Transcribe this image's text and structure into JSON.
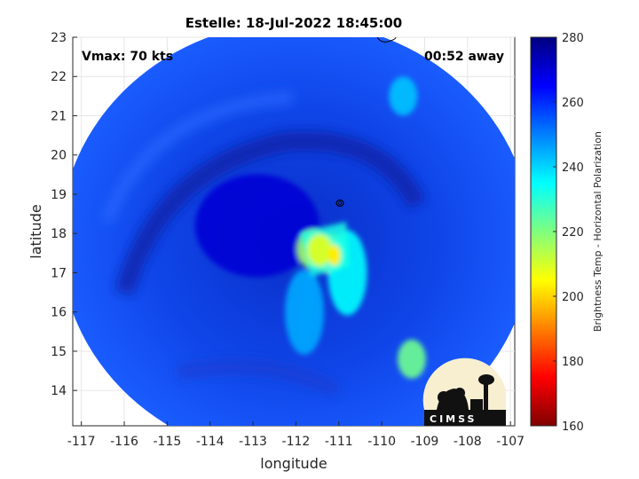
{
  "chart_data": {
    "type": "heatmap",
    "title": "Estelle: 18-Jul-2022 18:45:00",
    "xlabel": "longitude",
    "ylabel": "latitude",
    "xlim": [
      -117.2,
      -106.9
    ],
    "ylim": [
      13.1,
      23.0
    ],
    "xticks": [
      -117,
      -116,
      -115,
      -114,
      -113,
      -112,
      -111,
      -110,
      -109,
      -108,
      -107
    ],
    "yticks": [
      14,
      15,
      16,
      17,
      18,
      19,
      20,
      21,
      22,
      23
    ],
    "grid": true,
    "annotations": {
      "vmax": "Vmax: 70 kts",
      "away": "00:52 away"
    },
    "colorbar": {
      "label": "Brightness Temp - Horizontal Polarization",
      "range": [
        160,
        280
      ],
      "ticks": [
        160,
        180,
        200,
        220,
        240,
        260,
        280
      ],
      "colormap": "jet"
    },
    "swath": {
      "center_lon": -112.0,
      "center_lat": 17.9,
      "radius_deg": 5.5
    },
    "regions": [
      {
        "label": "eye",
        "lon": -112.9,
        "lat": 18.2,
        "value": 270
      },
      {
        "label": "convection",
        "lon": -111.2,
        "lat": 17.5,
        "value": 205
      },
      {
        "label": "convection",
        "lon": -111.6,
        "lat": 17.6,
        "value": 215
      },
      {
        "label": "rainband",
        "lon": -110.8,
        "lat": 17.0,
        "value": 235
      },
      {
        "label": "rainband",
        "lon": -111.8,
        "lat": 16.0,
        "value": 245
      },
      {
        "label": "cloud",
        "lon": -109.5,
        "lat": 21.5,
        "value": 242
      },
      {
        "label": "cloud",
        "lon": -109.3,
        "lat": 14.8,
        "value": 222
      }
    ]
  },
  "logo": {
    "text": "CIMSS"
  }
}
